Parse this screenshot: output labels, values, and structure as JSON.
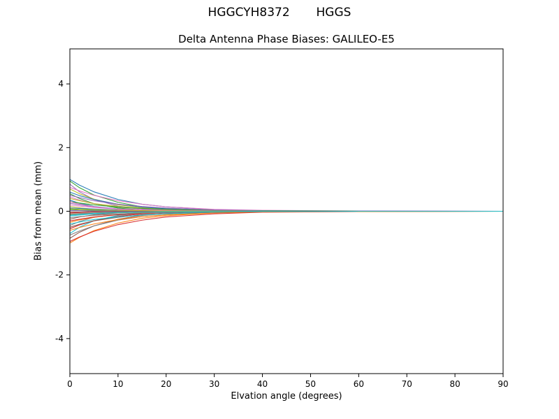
{
  "chart_data": {
    "type": "line",
    "suptitle": "HGGCYH8372       HGGS",
    "title": "Delta Antenna Phase Biases: GALILEO-E5",
    "xlabel": "Elvation angle (degrees)",
    "ylabel": "Bias from mean (mm)",
    "xlim": [
      0,
      90
    ],
    "ylim": [
      -5.1,
      5.1
    ],
    "xticks": [
      0,
      10,
      20,
      30,
      40,
      50,
      60,
      70,
      80,
      90
    ],
    "yticks": [
      -4,
      -2,
      0,
      2,
      4
    ],
    "grid": false,
    "legend": false,
    "x": [
      0,
      2,
      5,
      10,
      15,
      20,
      30,
      40,
      60,
      90
    ],
    "series": [
      {
        "color": "#1f77b4",
        "y": [
          1.0,
          0.82,
          0.61,
          0.37,
          0.22,
          0.14,
          0.05,
          0.02,
          0,
          0
        ]
      },
      {
        "color": "#ff7f0e",
        "y": [
          -1.0,
          -0.82,
          -0.61,
          -0.37,
          -0.22,
          -0.14,
          -0.05,
          -0.02,
          0,
          0
        ]
      },
      {
        "color": "#2ca02c",
        "y": [
          0.95,
          0.74,
          0.51,
          0.28,
          0.14,
          0.08,
          0.02,
          0.01,
          0,
          0
        ]
      },
      {
        "color": "#d62728",
        "y": [
          -0.95,
          -0.81,
          -0.63,
          -0.42,
          -0.28,
          -0.18,
          -0.08,
          -0.03,
          -0.01,
          0
        ]
      },
      {
        "color": "#9467bd",
        "y": [
          0.85,
          0.61,
          0.37,
          0.16,
          0.07,
          0.03,
          0.01,
          0,
          0,
          0
        ]
      },
      {
        "color": "#8c564b",
        "y": [
          -0.85,
          -0.66,
          -0.46,
          -0.25,
          -0.13,
          -0.07,
          -0.02,
          -0.01,
          0,
          0
        ]
      },
      {
        "color": "#e377c2",
        "y": [
          0.75,
          0.64,
          0.5,
          0.33,
          0.22,
          0.14,
          0.06,
          0.03,
          0.01,
          0
        ]
      },
      {
        "color": "#7f7f7f",
        "y": [
          -0.75,
          -0.62,
          -0.46,
          -0.28,
          -0.17,
          -0.11,
          -0.04,
          -0.02,
          0,
          0
        ]
      },
      {
        "color": "#bcbd22",
        "y": [
          0.7,
          0.55,
          0.38,
          0.2,
          0.11,
          0.06,
          0.02,
          0.01,
          0,
          0
        ]
      },
      {
        "color": "#17becf",
        "y": [
          -0.7,
          -0.5,
          -0.3,
          -0.13,
          -0.06,
          -0.03,
          -0.01,
          0,
          0,
          0
        ]
      },
      {
        "color": "#1f77b4",
        "y": [
          0.6,
          0.49,
          0.37,
          0.22,
          0.13,
          0.08,
          0.03,
          0.01,
          0,
          0
        ]
      },
      {
        "color": "#ff7f0e",
        "y": [
          -0.6,
          -0.51,
          -0.4,
          -0.26,
          -0.17,
          -0.11,
          -0.05,
          -0.02,
          -0.01,
          0
        ]
      },
      {
        "color": "#2ca02c",
        "y": [
          0.55,
          0.4,
          0.24,
          0.1,
          0.04,
          0.02,
          0.01,
          0,
          0,
          0
        ]
      },
      {
        "color": "#d62728",
        "y": [
          -0.55,
          -0.43,
          -0.3,
          -0.16,
          -0.08,
          -0.04,
          -0.01,
          -0.01,
          0,
          0
        ]
      },
      {
        "color": "#9467bd",
        "y": [
          0.5,
          0.43,
          0.33,
          0.22,
          0.15,
          0.1,
          0.04,
          0.02,
          0.01,
          0
        ]
      },
      {
        "color": "#8c564b",
        "y": [
          -0.5,
          -0.41,
          -0.3,
          -0.19,
          -0.11,
          -0.07,
          -0.03,
          -0.01,
          0,
          0
        ]
      },
      {
        "color": "#e377c2",
        "y": [
          0.45,
          0.35,
          0.24,
          0.13,
          0.07,
          0.04,
          0.01,
          0,
          0,
          0
        ]
      },
      {
        "color": "#7f7f7f",
        "y": [
          -0.45,
          -0.32,
          -0.19,
          -0.09,
          -0.04,
          -0.02,
          0,
          0,
          0,
          0
        ]
      },
      {
        "color": "#bcbd22",
        "y": [
          0.4,
          0.33,
          0.24,
          0.15,
          0.09,
          0.06,
          0.02,
          0.01,
          0,
          0
        ]
      },
      {
        "color": "#17becf",
        "y": [
          -0.4,
          -0.34,
          -0.26,
          -0.18,
          -0.12,
          -0.08,
          -0.03,
          -0.01,
          0,
          0
        ]
      },
      {
        "color": "#1f77b4",
        "y": [
          0.35,
          0.25,
          0.15,
          0.07,
          0.03,
          0.01,
          0,
          0,
          0,
          0
        ]
      },
      {
        "color": "#ff7f0e",
        "y": [
          -0.35,
          -0.27,
          -0.19,
          -0.1,
          -0.05,
          -0.03,
          -0.01,
          0,
          0,
          0
        ]
      },
      {
        "color": "#2ca02c",
        "y": [
          0.3,
          0.26,
          0.2,
          0.13,
          0.09,
          0.06,
          0.02,
          0.01,
          0,
          0
        ]
      },
      {
        "color": "#d62728",
        "y": [
          -0.3,
          -0.25,
          -0.18,
          -0.11,
          -0.07,
          -0.04,
          -0.02,
          -0.01,
          0,
          0
        ]
      },
      {
        "color": "#9467bd",
        "y": [
          0.25,
          0.2,
          0.14,
          0.07,
          0.04,
          0.02,
          0.01,
          0,
          0,
          0
        ]
      },
      {
        "color": "#8c564b",
        "y": [
          -0.25,
          -0.18,
          -0.11,
          -0.05,
          -0.02,
          -0.01,
          0,
          0,
          0,
          0
        ]
      },
      {
        "color": "#e377c2",
        "y": [
          0.2,
          0.16,
          0.12,
          0.07,
          0.04,
          0.03,
          0.01,
          0,
          0,
          0
        ]
      },
      {
        "color": "#7f7f7f",
        "y": [
          -0.2,
          -0.17,
          -0.13,
          -0.09,
          -0.06,
          -0.04,
          -0.02,
          -0.01,
          0,
          0
        ]
      },
      {
        "color": "#bcbd22",
        "y": [
          0.15,
          0.11,
          0.06,
          0.03,
          0.01,
          0.01,
          0,
          0,
          0,
          0
        ]
      },
      {
        "color": "#17becf",
        "y": [
          -0.15,
          -0.12,
          -0.08,
          -0.04,
          -0.02,
          -0.01,
          0,
          0,
          0,
          0
        ]
      },
      {
        "color": "#1f77b4",
        "y": [
          0.1,
          0.09,
          0.07,
          0.04,
          0.03,
          0.02,
          0.01,
          0,
          0,
          0
        ]
      },
      {
        "color": "#ff7f0e",
        "y": [
          -0.1,
          -0.08,
          -0.06,
          -0.04,
          -0.02,
          -0.01,
          -0.01,
          0,
          0,
          0
        ]
      },
      {
        "color": "#2ca02c",
        "y": [
          0.05,
          0.04,
          0.03,
          0.01,
          0.01,
          0,
          0,
          0,
          0,
          0
        ]
      },
      {
        "color": "#d62728",
        "y": [
          -0.05,
          -0.04,
          -0.02,
          -0.01,
          0,
          0,
          0,
          0,
          0,
          0
        ]
      },
      {
        "color": "#9467bd",
        "y": [
          0.02,
          0.02,
          0.01,
          0.01,
          0,
          0,
          0,
          0,
          0,
          0
        ]
      },
      {
        "color": "#8c564b",
        "y": [
          -0.02,
          -0.02,
          -0.01,
          -0.01,
          -0.01,
          0,
          0,
          0,
          0,
          0
        ]
      },
      {
        "color": "#e377c2",
        "y": [
          0.3,
          0.22,
          0.14,
          0.06,
          0.03,
          0.02,
          0.01,
          0,
          0,
          0
        ]
      },
      {
        "color": "#7f7f7f",
        "y": [
          -0.08,
          -0.07,
          -0.05,
          -0.03,
          -0.02,
          -0.01,
          0,
          0,
          0,
          0
        ]
      },
      {
        "color": "#bcbd22",
        "y": [
          0.08,
          0.06,
          0.05,
          0.03,
          0.02,
          0.01,
          0,
          0,
          0,
          0
        ]
      },
      {
        "color": "#17becf",
        "y": [
          -0.12,
          -0.1,
          -0.07,
          -0.04,
          -0.03,
          -0.02,
          -0.01,
          0,
          0,
          0
        ]
      }
    ]
  }
}
